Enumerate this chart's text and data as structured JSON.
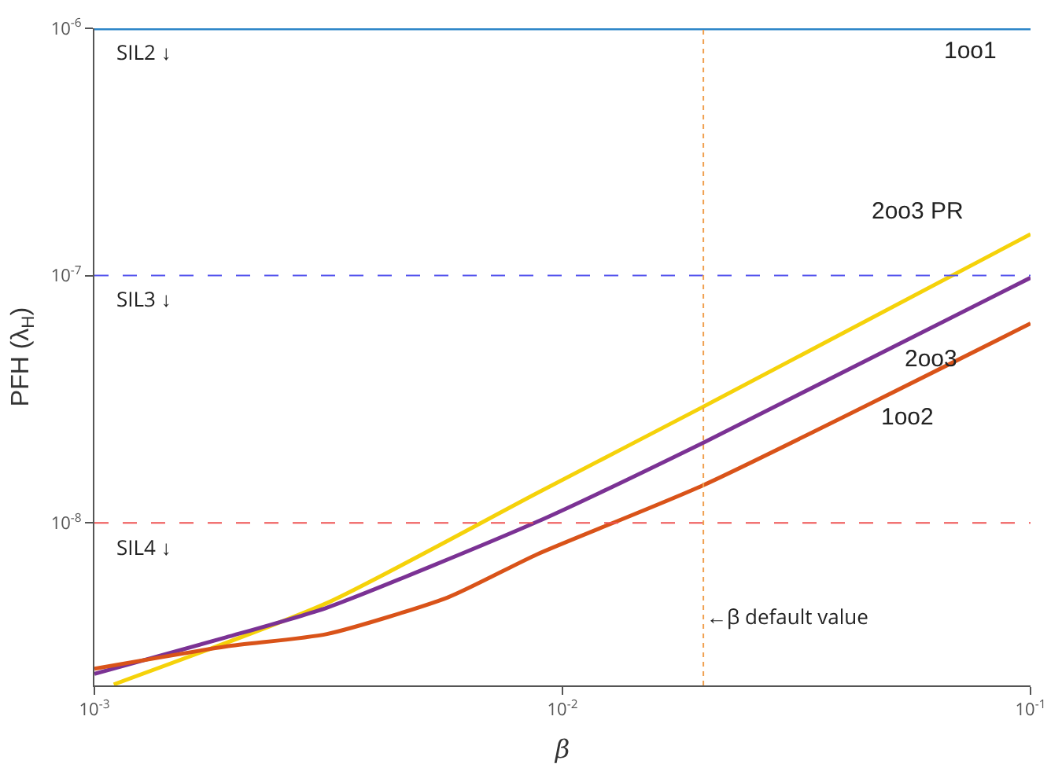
{
  "chart_data": {
    "type": "line",
    "xlabel": "β",
    "ylabel": "PFH (λ$_{H}$)",
    "log": "xy",
    "grid": false,
    "legend": false,
    "line_style": "solid",
    "marker": "none",
    "xlim": [
      0.001,
      0.1
    ],
    "ylim": [
      2.2e-09,
      1e-06
    ],
    "xticks": [
      {
        "value": 0.001,
        "label": "10$^{-3}$"
      },
      {
        "value": 0.01,
        "label": "10$^{-2}$"
      },
      {
        "value": 0.1,
        "label": "10$^{-1}$"
      }
    ],
    "yticks": [
      {
        "value": 1e-08,
        "label": "10$^{-8}$"
      },
      {
        "value": 1e-07,
        "label": "10$^{-7}$"
      },
      {
        "value": 1e-06,
        "label": "10$^{-6}$"
      }
    ],
    "series": [
      {
        "name": "1oo1",
        "color": "#2e86c8",
        "x": [
          0.001,
          0.1
        ],
        "values": [
          1e-06,
          1e-06
        ]
      },
      {
        "name": "2oo3 PR",
        "color": "#f5d20a",
        "x": [
          0.0011,
          0.00314,
          0.00883,
          0.02,
          0.1
        ],
        "values": [
          2.22e-09,
          4.74e-09,
          1.32e-08,
          2.95e-08,
          1.47e-07
        ]
      },
      {
        "name": "2oo3",
        "color": "#7b3294",
        "x": [
          0.001,
          0.00191,
          0.00314,
          0.00883,
          0.02,
          0.1
        ],
        "values": [
          2.45e-09,
          3.44e-09,
          4.54e-09,
          1.01e-08,
          2.11e-08,
          9.8e-08
        ]
      },
      {
        "name": "1oo2",
        "color": "#d95319",
        "x": [
          0.001,
          0.00191,
          0.00314,
          0.0057,
          0.00883,
          0.02,
          0.1
        ],
        "values": [
          2.57e-09,
          3.16e-09,
          3.55e-09,
          5e-09,
          7.46e-09,
          1.42e-08,
          6.4e-08
        ]
      }
    ],
    "ref_lines": [
      {
        "axis": "y",
        "value": 1e-07,
        "label": "SIL3 ↓",
        "color": "#5555ee",
        "line_style": "dashed"
      },
      {
        "axis": "y",
        "value": 1e-08,
        "label": "SIL4 ↓",
        "color": "#ee5555",
        "line_style": "dashed"
      },
      {
        "axis": "x",
        "value": 0.02,
        "label": "←β default value",
        "color": "#f0a050",
        "line_style": "dotted"
      }
    ],
    "annotations": [
      {
        "text": "SIL2 ↓",
        "x": 0.001,
        "y": 1e-06
      }
    ]
  }
}
